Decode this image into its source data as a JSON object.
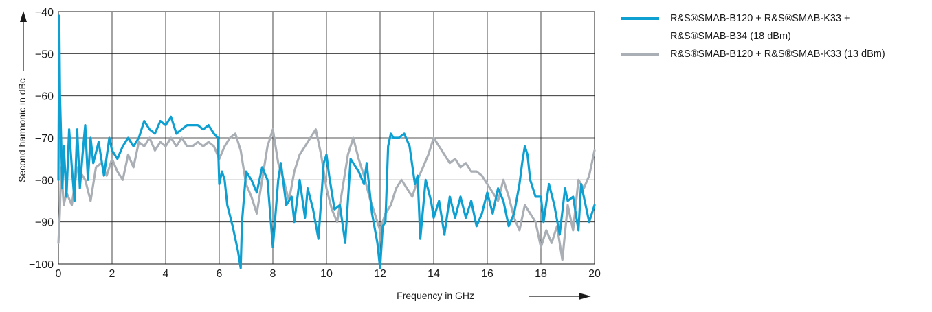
{
  "chart_data": {
    "type": "line",
    "xlabel": "Frequency in GHz",
    "ylabel": "Second harmonic in dBc",
    "xlim": [
      0,
      20
    ],
    "ylim": [
      -100,
      -40
    ],
    "x_ticks": [
      "0",
      "2",
      "4",
      "6",
      "8",
      "10",
      "12",
      "14",
      "16",
      "18",
      "20"
    ],
    "y_ticks": [
      "−40",
      "−50",
      "−60",
      "−70",
      "−80",
      "−90",
      "−100"
    ],
    "grid": true,
    "legend_position": "right",
    "series": [
      {
        "name_line1": "R&S®SMAB-B120 + R&S®SMAB-K33 +",
        "name_line2": "R&S®SMAB-B34 (18 dBm)",
        "color": "#0fa0d2",
        "x": [
          0,
          0.03,
          0.06,
          0.1,
          0.15,
          0.2,
          0.3,
          0.4,
          0.5,
          0.6,
          0.7,
          0.8,
          0.9,
          1.0,
          1.1,
          1.2,
          1.3,
          1.5,
          1.7,
          1.9,
          2.0,
          2.2,
          2.4,
          2.6,
          2.8,
          3.0,
          3.2,
          3.4,
          3.6,
          3.8,
          4.0,
          4.2,
          4.4,
          4.6,
          4.8,
          5.0,
          5.2,
          5.4,
          5.6,
          5.8,
          5.95,
          6.0,
          6.1,
          6.2,
          6.3,
          6.5,
          6.7,
          6.8,
          6.85,
          7.0,
          7.2,
          7.4,
          7.5,
          7.6,
          7.8,
          8.0,
          8.2,
          8.3,
          8.5,
          8.7,
          8.8,
          9.0,
          9.2,
          9.3,
          9.5,
          9.7,
          9.9,
          10.0,
          10.1,
          10.3,
          10.5,
          10.7,
          10.9,
          11.0,
          11.2,
          11.4,
          11.5,
          11.7,
          11.9,
          12.0,
          12.1,
          12.2,
          12.3,
          12.4,
          12.5,
          12.7,
          12.9,
          13.1,
          13.3,
          13.4,
          13.5,
          13.7,
          13.9,
          14.0,
          14.2,
          14.4,
          14.6,
          14.8,
          15.0,
          15.2,
          15.4,
          15.6,
          15.8,
          16.0,
          16.2,
          16.4,
          16.6,
          16.8,
          17.0,
          17.2,
          17.3,
          17.4,
          17.5,
          17.6,
          17.8,
          18.0,
          18.1,
          18.3,
          18.5,
          18.7,
          18.9,
          19.0,
          19.2,
          19.4,
          19.5,
          19.6,
          19.8,
          20.0
        ],
        "y": [
          -80,
          -41,
          -60,
          -70,
          -82,
          -72,
          -84,
          -68,
          -77,
          -85,
          -68,
          -82,
          -74,
          -67,
          -80,
          -70,
          -76,
          -71,
          -79,
          -70,
          -73,
          -75,
          -72,
          -70,
          -72,
          -70,
          -66,
          -68,
          -69,
          -66,
          -67,
          -65,
          -69,
          -68,
          -67,
          -67,
          -67,
          -68,
          -67,
          -69,
          -70,
          -81,
          -78,
          -80,
          -86,
          -91,
          -97,
          -101,
          -90,
          -78,
          -80,
          -83,
          -80,
          -77,
          -80,
          -96,
          -80,
          -76,
          -86,
          -84,
          -90,
          -80,
          -89,
          -82,
          -87,
          -94,
          -76,
          -74,
          -79,
          -87,
          -86,
          -95,
          -75,
          -76,
          -78,
          -81,
          -76,
          -88,
          -95,
          -101,
          -91,
          -90,
          -72,
          -69,
          -70,
          -70,
          -69,
          -72,
          -81,
          -79,
          -94,
          -80,
          -85,
          -89,
          -85,
          -93,
          -84,
          -89,
          -84,
          -89,
          -85,
          -91,
          -88,
          -83,
          -88,
          -82,
          -85,
          -91,
          -88,
          -81,
          -76,
          -72,
          -74,
          -80,
          -84,
          -84,
          -90,
          -81,
          -86,
          -93,
          -82,
          -85,
          -84,
          -92,
          -81,
          -84,
          -90,
          -86
        ]
      },
      {
        "name": "R&S®SMAB-B120 + R&S®SMAB-K33 (13 dBm)",
        "color": "#a9afb5",
        "x": [
          0,
          0.05,
          0.1,
          0.2,
          0.3,
          0.5,
          0.7,
          0.9,
          1.0,
          1.2,
          1.4,
          1.6,
          1.8,
          2.0,
          2.2,
          2.4,
          2.6,
          2.8,
          3.0,
          3.2,
          3.4,
          3.6,
          3.8,
          4.0,
          4.2,
          4.4,
          4.6,
          4.8,
          5.0,
          5.2,
          5.4,
          5.6,
          5.8,
          6.0,
          6.2,
          6.4,
          6.6,
          6.8,
          7.0,
          7.2,
          7.4,
          7.6,
          7.8,
          8.0,
          8.2,
          8.4,
          8.6,
          8.8,
          9.0,
          9.2,
          9.4,
          9.6,
          9.8,
          10.0,
          10.2,
          10.4,
          10.6,
          10.8,
          11.0,
          11.2,
          11.4,
          11.6,
          11.8,
          12.0,
          12.2,
          12.4,
          12.6,
          12.8,
          13.0,
          13.2,
          13.4,
          13.6,
          13.8,
          14.0,
          14.2,
          14.4,
          14.6,
          14.8,
          15.0,
          15.2,
          15.4,
          15.6,
          15.8,
          16.0,
          16.2,
          16.4,
          16.6,
          16.8,
          17.0,
          17.2,
          17.4,
          17.6,
          17.8,
          18.0,
          18.2,
          18.4,
          18.6,
          18.8,
          19.0,
          19.2,
          19.4,
          19.6,
          19.8,
          20.0
        ],
        "y": [
          -95,
          -88,
          -77,
          -86,
          -83,
          -86,
          -77,
          -79,
          -80,
          -85,
          -77,
          -76,
          -79,
          -75,
          -78,
          -80,
          -74,
          -77,
          -71,
          -72,
          -70,
          -73,
          -71,
          -72,
          -70,
          -72,
          -70,
          -72,
          -72,
          -71,
          -72,
          -71,
          -72,
          -75,
          -72,
          -70,
          -69,
          -73,
          -81,
          -84,
          -88,
          -80,
          -72,
          -68,
          -76,
          -80,
          -85,
          -78,
          -74,
          -72,
          -70,
          -68,
          -74,
          -82,
          -87,
          -90,
          -82,
          -74,
          -70,
          -75,
          -79,
          -84,
          -88,
          -92,
          -88,
          -86,
          -82,
          -80,
          -82,
          -84,
          -80,
          -77,
          -74,
          -70,
          -72,
          -74,
          -76,
          -75,
          -77,
          -76,
          -78,
          -78,
          -79,
          -81,
          -83,
          -85,
          -80,
          -84,
          -89,
          -92,
          -86,
          -88,
          -90,
          -96,
          -92,
          -95,
          -91,
          -99,
          -86,
          -92,
          -80,
          -82,
          -79,
          -73
        ]
      }
    ]
  }
}
